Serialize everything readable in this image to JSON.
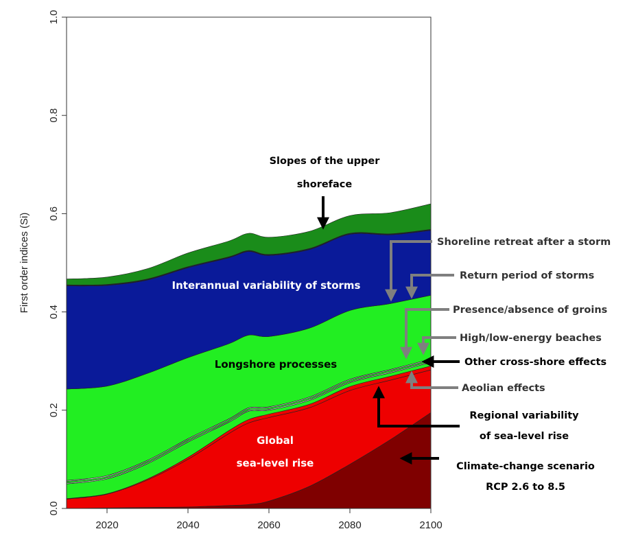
{
  "chart_data": {
    "type": "area",
    "stacked": true,
    "title": "",
    "xlabel": "",
    "ylabel": "First order indices (Si)",
    "xlim": [
      2010,
      2100
    ],
    "ylim": [
      0,
      1
    ],
    "x_ticks": [
      2020,
      2040,
      2060,
      2080,
      2100
    ],
    "y_ticks": [
      "0.0",
      "0.2",
      "0.4",
      "0.6",
      "0.8",
      "1.0"
    ],
    "grid": false,
    "x": [
      2010,
      2020,
      2030,
      2040,
      2050,
      2055,
      2060,
      2070,
      2080,
      2090,
      2100
    ],
    "series": [
      {
        "name": "Climate-change scenario RCP 2.6 to 8.5",
        "color": "#7f0000",
        "values": [
          0.0,
          0.001,
          0.002,
          0.003,
          0.006,
          0.008,
          0.015,
          0.045,
          0.09,
          0.14,
          0.195
        ]
      },
      {
        "name": "Global sea-level rise",
        "color": "#ee0000",
        "values": [
          0.019,
          0.028,
          0.056,
          0.097,
          0.146,
          0.166,
          0.17,
          0.16,
          0.15,
          0.121,
          0.087
        ]
      },
      {
        "name": "Regional variability of sea-level rise",
        "color": "#ee0000",
        "values": [
          0.001,
          0.001,
          0.002,
          0.004,
          0.006,
          0.007,
          0.007,
          0.007,
          0.008,
          0.008,
          0.008
        ]
      },
      {
        "name": "Aeolian effects",
        "color": "#22ee22",
        "values": [
          0.03,
          0.03,
          0.031,
          0.031,
          0.017,
          0.017,
          0.008,
          0.008,
          0.008,
          0.007,
          0.007
        ]
      },
      {
        "name": "Other cross-shore effects",
        "color": "#c8d8c8",
        "values": [
          0.002,
          0.002,
          0.002,
          0.002,
          0.002,
          0.002,
          0.002,
          0.002,
          0.002,
          0.002,
          0.002
        ]
      },
      {
        "name": "High/low-energy beaches",
        "color": "#22ee22",
        "values": [
          0.003,
          0.003,
          0.003,
          0.003,
          0.003,
          0.003,
          0.003,
          0.003,
          0.003,
          0.003,
          0.003
        ]
      },
      {
        "name": "Presence/absence of groins",
        "color": "#c8d8c8",
        "values": [
          0.002,
          0.002,
          0.002,
          0.002,
          0.002,
          0.002,
          0.002,
          0.002,
          0.002,
          0.002,
          0.002
        ]
      },
      {
        "name": "Longshore processes",
        "color": "#22ee22",
        "values": [
          0.186,
          0.182,
          0.177,
          0.165,
          0.153,
          0.148,
          0.143,
          0.14,
          0.14,
          0.134,
          0.13
        ]
      },
      {
        "name": "Interannual variability of storms",
        "color": "#0a1a99",
        "values": [
          0.21,
          0.205,
          0.19,
          0.183,
          0.175,
          0.17,
          0.165,
          0.16,
          0.155,
          0.14,
          0.132
        ]
      },
      {
        "name": "Return period of storms",
        "color": "#0a1a99",
        "values": [
          0.001,
          0.001,
          0.001,
          0.001,
          0.001,
          0.001,
          0.001,
          0.001,
          0.001,
          0.001,
          0.001
        ]
      },
      {
        "name": "Shoreline retreat after a storm",
        "color": "#0a1a99",
        "values": [
          0.001,
          0.001,
          0.001,
          0.001,
          0.001,
          0.001,
          0.001,
          0.001,
          0.001,
          0.001,
          0.001
        ]
      },
      {
        "name": "Slopes of the upper shoreface",
        "color": "#1a8c1a",
        "values": [
          0.012,
          0.015,
          0.021,
          0.028,
          0.032,
          0.035,
          0.035,
          0.035,
          0.036,
          0.043,
          0.052
        ]
      }
    ],
    "inner_labels": {
      "storms": "Interannual variability of storms",
      "longshore": "Longshore processes",
      "global_1": "Global",
      "global_2": "sea-level rise"
    },
    "annotations": {
      "slopes_1": "Slopes of the upper",
      "slopes_2": "shoreface",
      "retreat": "Shoreline retreat after a storm",
      "return": "Return period of storms",
      "groins": "Presence/absence of groins",
      "energy": "High/low-energy beaches",
      "cross": "Other cross-shore effects",
      "aeolian": "Aeolian effects",
      "regional_1": "Regional variability",
      "regional_2": "of sea-level rise",
      "climate_1": "Climate-change scenario",
      "climate_2": "RCP 2.6 to 8.5"
    },
    "colors": {
      "arrow_dark": "#000000",
      "arrow_gray": "#7f7f7f",
      "text_dark": "#000000",
      "text_gray": "#333333",
      "inner_text": "#ffffff"
    }
  }
}
